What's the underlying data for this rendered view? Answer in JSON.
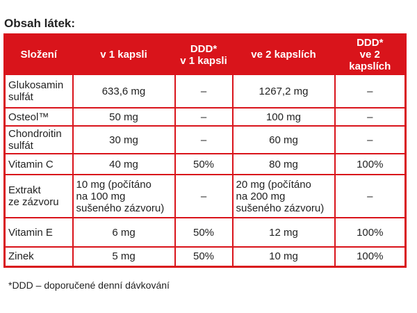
{
  "title": "Obsah látek:",
  "table": {
    "header": [
      [
        "Složení"
      ],
      [
        "v 1 kapsli"
      ],
      [
        "DDD*",
        "v 1 kapsli"
      ],
      [
        "ve 2 kapslích"
      ],
      [
        "DDD*",
        "ve 2 kapslích"
      ]
    ],
    "rows": [
      [
        [
          "Glukosamin",
          "sulfát"
        ],
        [
          "633,6 mg"
        ],
        [
          "–"
        ],
        [
          "1267,2 mg"
        ],
        [
          "–"
        ]
      ],
      [
        [
          "Osteol™"
        ],
        [
          "50 mg"
        ],
        [
          "–"
        ],
        [
          "100 mg"
        ],
        [
          "–"
        ]
      ],
      [
        [
          "Chondroitin",
          "sulfát"
        ],
        [
          "30 mg"
        ],
        [
          "–"
        ],
        [
          "60 mg"
        ],
        [
          "–"
        ]
      ],
      [
        [
          "Vitamin C"
        ],
        [
          "40 mg"
        ],
        [
          "50%"
        ],
        [
          "80 mg"
        ],
        [
          "100%"
        ]
      ],
      [
        [
          "Extrakt",
          "ze zázvoru"
        ],
        [
          "10 mg (počítáno",
          "na 100 mg",
          "sušeného zázvoru)"
        ],
        [
          "–"
        ],
        [
          "20 mg (počítáno",
          "na 200 mg",
          "sušeného zázvoru)"
        ],
        [
          "–"
        ]
      ],
      [
        [
          "Vitamin E"
        ],
        [
          "6 mg"
        ],
        [
          "50%"
        ],
        [
          "12 mg"
        ],
        [
          "100%"
        ]
      ],
      [
        [
          "Zinek"
        ],
        [
          "5 mg"
        ],
        [
          "50%"
        ],
        [
          "10 mg"
        ],
        [
          "100%"
        ]
      ]
    ]
  },
  "footnote": "*DDD – doporučené denní dávkování"
}
